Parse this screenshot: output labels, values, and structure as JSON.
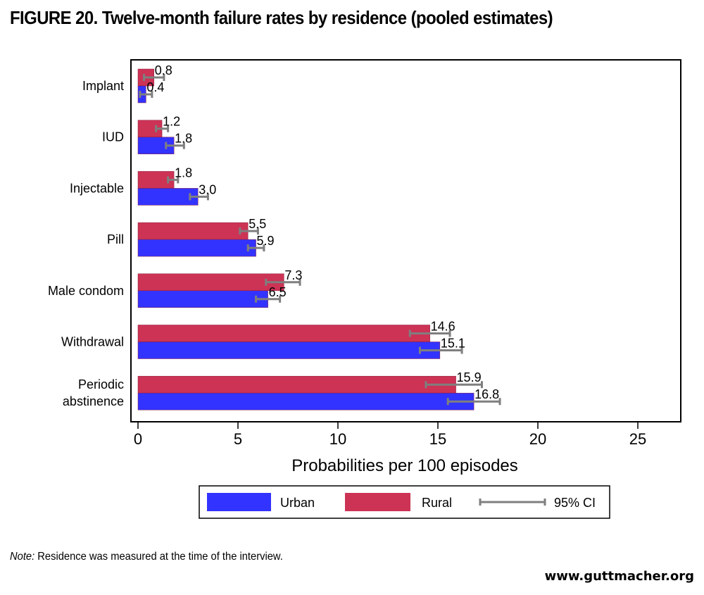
{
  "chart_data": {
    "type": "bar",
    "orientation": "horizontal",
    "title": "FIGURE 20. Twelve-month failure rates by residence (pooled estimates)",
    "xlabel": "Probabilities per 100 episodes",
    "ylabel": "",
    "xlim": [
      0,
      27
    ],
    "xticks": [
      0,
      5,
      10,
      15,
      20,
      25
    ],
    "grid": false,
    "legend_position": "bottom",
    "categories": [
      "Implant",
      "IUD",
      "Injectable",
      "Pill",
      "Male condom",
      "Withdrawal",
      "Periodic abstinence"
    ],
    "category_lines": [
      [
        "Implant"
      ],
      [
        "IUD"
      ],
      [
        "Injectable"
      ],
      [
        "Pill"
      ],
      [
        "Male condom"
      ],
      [
        "Withdrawal"
      ],
      [
        "Periodic",
        "abstinence"
      ]
    ],
    "series": [
      {
        "name": "Rural",
        "color": "#cc3355",
        "values": [
          0.8,
          1.2,
          1.8,
          5.5,
          7.3,
          14.6,
          15.9
        ],
        "labels": [
          "0.8",
          "1.2",
          "1.8",
          "5.5",
          "7.3",
          "14.6",
          "15.9"
        ],
        "ci": [
          [
            0.3,
            1.3
          ],
          [
            0.9,
            1.5
          ],
          [
            1.5,
            2.0
          ],
          [
            5.1,
            6.0
          ],
          [
            6.4,
            8.1
          ],
          [
            13.6,
            15.6
          ],
          [
            14.4,
            17.2
          ]
        ]
      },
      {
        "name": "Urban",
        "color": "#3333ff",
        "values": [
          0.4,
          1.8,
          3.0,
          5.9,
          6.5,
          15.1,
          16.8
        ],
        "labels": [
          "0.4",
          "1.8",
          "3.0",
          "5.9",
          "6.5",
          "15.1",
          "16.8"
        ],
        "ci": [
          [
            0.1,
            0.7
          ],
          [
            1.4,
            2.3
          ],
          [
            2.6,
            3.5
          ],
          [
            5.5,
            6.3
          ],
          [
            5.9,
            7.1
          ],
          [
            14.1,
            16.2
          ],
          [
            15.5,
            18.1
          ]
        ]
      }
    ],
    "legend": {
      "entries": [
        {
          "label": "Urban",
          "swatch": "bar",
          "color": "#3333ff"
        },
        {
          "label": "Rural",
          "swatch": "bar",
          "color": "#cc3355"
        },
        {
          "label": "95% CI",
          "swatch": "errorbar",
          "color": "#7f7f7f"
        }
      ]
    }
  },
  "note": {
    "label": "Note:",
    "text": " Residence was measured at the time of the interview."
  },
  "source": "www.guttmacher.org"
}
